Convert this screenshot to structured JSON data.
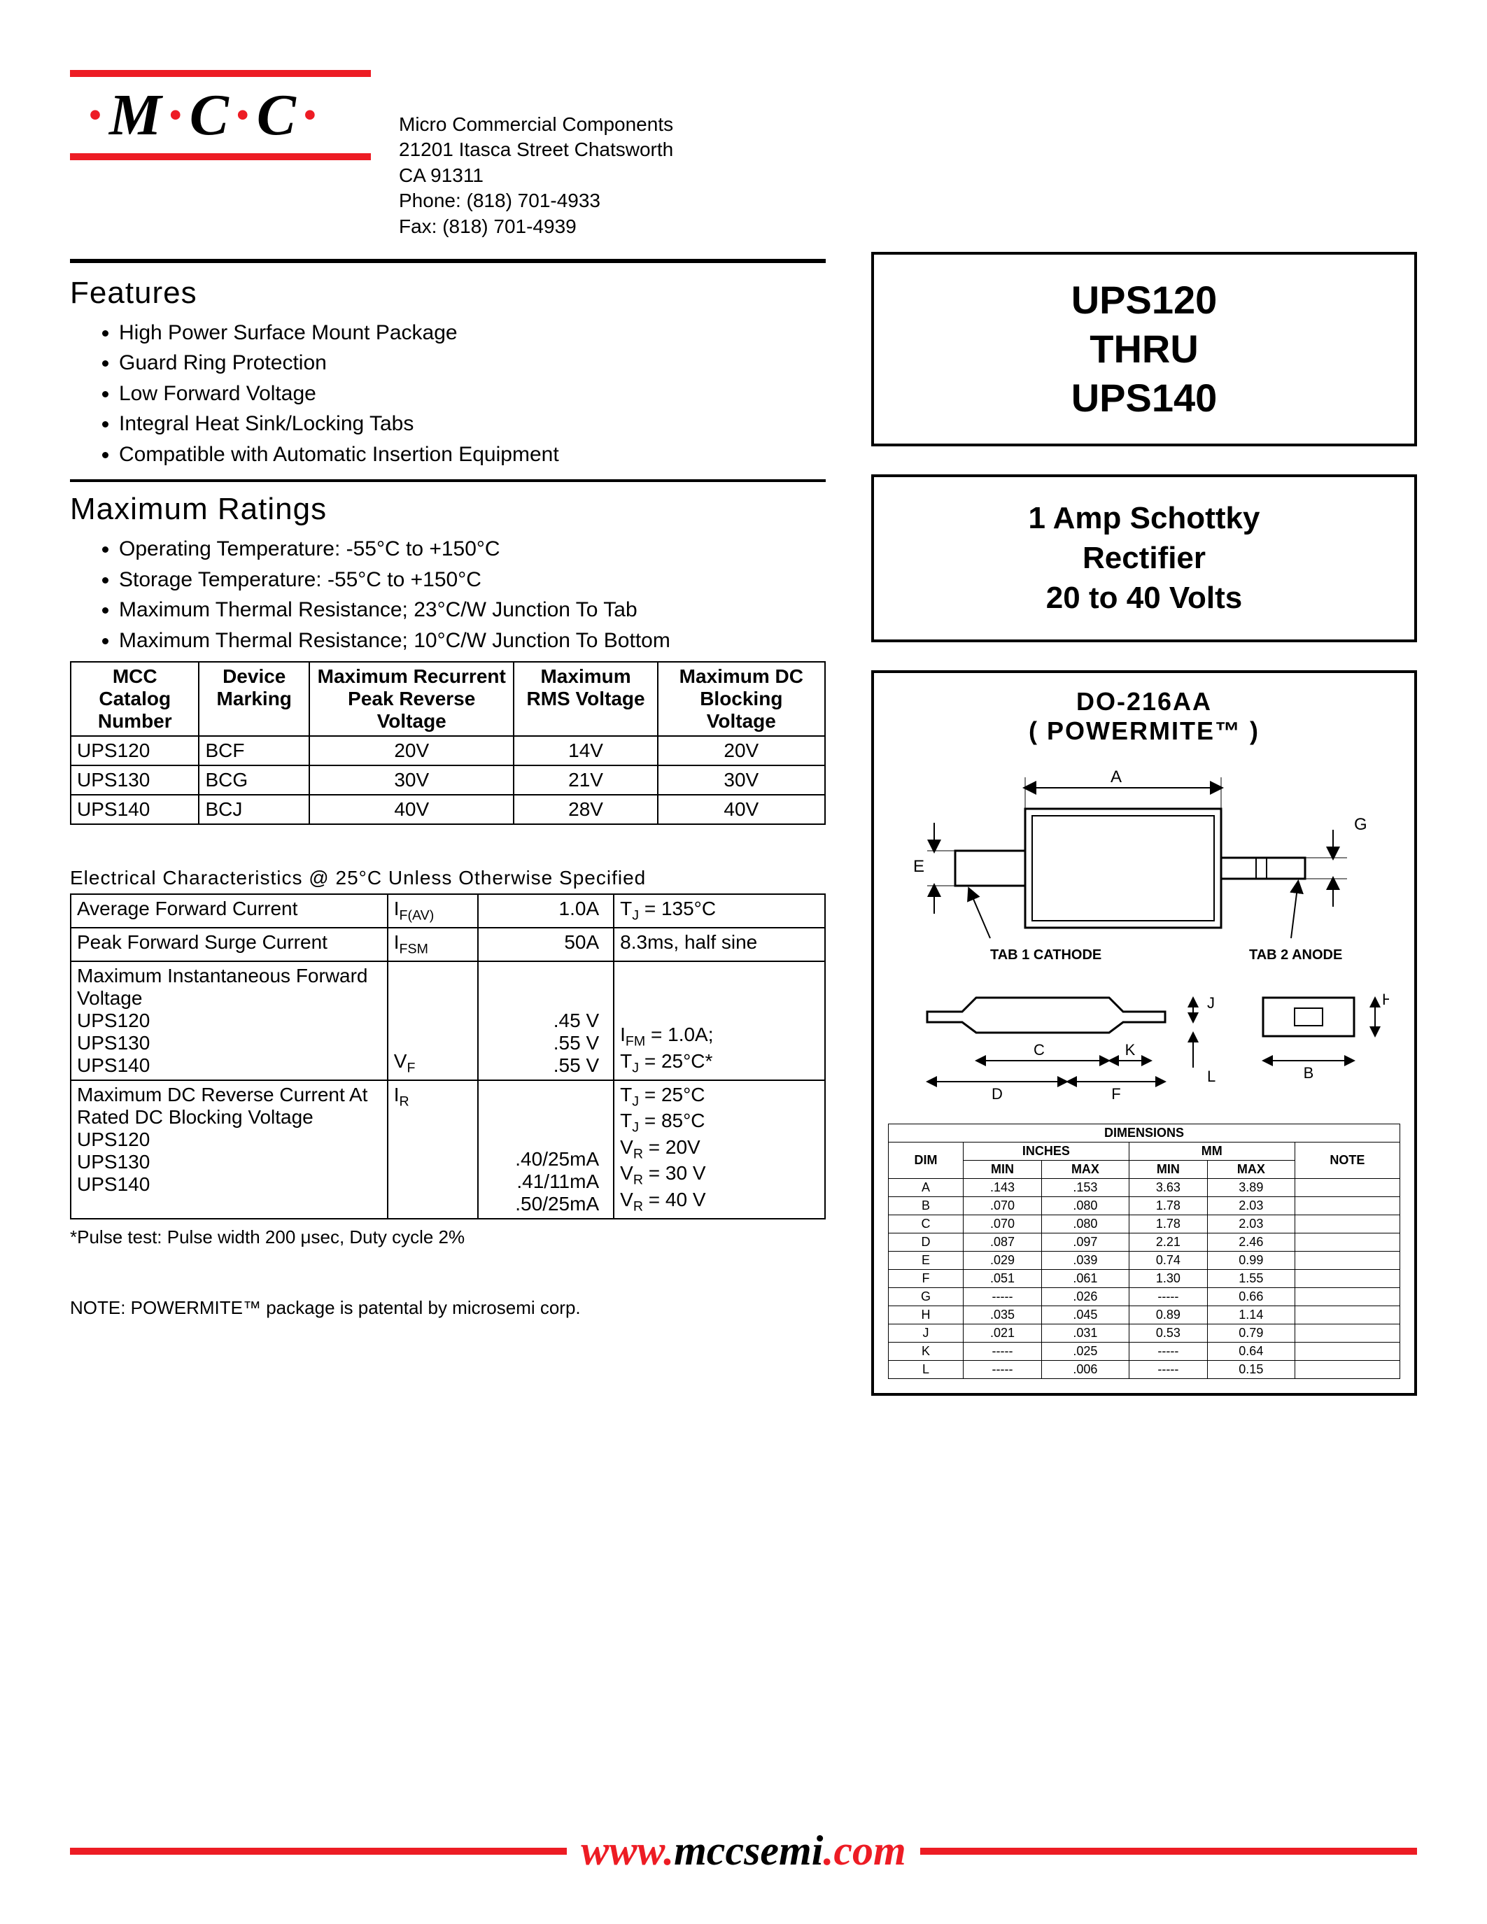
{
  "company": {
    "logo_text": "M·C·C",
    "name": "Micro Commercial Components",
    "address1": "21201 Itasca Street Chatsworth",
    "address2": "CA 91311",
    "phone": "Phone: (818) 701-4933",
    "fax": "Fax:     (818) 701-4939"
  },
  "title_box": {
    "line1": "UPS120",
    "line2": "THRU",
    "line3": "UPS140"
  },
  "subtitle_box": {
    "line1": "1 Amp Schottky",
    "line2": "Rectifier",
    "line3": "20 to 40 Volts"
  },
  "features": {
    "heading": "Features",
    "items": [
      "High Power Surface Mount Package",
      "Guard Ring Protection",
      "Low Forward Voltage",
      "Integral Heat Sink/Locking Tabs",
      "Compatible with Automatic Insertion Equipment"
    ]
  },
  "max_ratings": {
    "heading": "Maximum Ratings",
    "items": [
      "Operating Temperature: -55°C to +150°C",
      "Storage Temperature: -55°C to +150°C",
      "Maximum Thermal Resistance; 23°C/W Junction To Tab",
      "Maximum Thermal Resistance; 10°C/W Junction To Bottom"
    ]
  },
  "ratings_table": {
    "headers": [
      "MCC Catalog Number",
      "Device Marking",
      "Maximum Recurrent Peak Reverse Voltage",
      "Maximum RMS Voltage",
      "Maximum DC Blocking Voltage"
    ],
    "rows": [
      [
        "UPS120",
        "BCF",
        "20V",
        "14V",
        "20V"
      ],
      [
        "UPS130",
        "BCG",
        "30V",
        "21V",
        "30V"
      ],
      [
        "UPS140",
        "BCJ",
        "40V",
        "28V",
        "40V"
      ]
    ]
  },
  "elec_char": {
    "heading": "Electrical Characteristics @ 25°C Unless Otherwise Specified",
    "rows": [
      {
        "param": "Average Forward Current",
        "symbol": "I_F(AV)",
        "value": "1.0A",
        "cond": "T_J = 135°C"
      },
      {
        "param": "Peak Forward Surge Current",
        "symbol": "I_FSM",
        "value": "50A",
        "cond": "8.3ms, half sine"
      },
      {
        "param": "Maximum Instantaneous Forward Voltage\n        UPS120\n        UPS130\n        UPS140",
        "symbol": "V_F",
        "value": ".45 V\n.55 V\n.55 V",
        "cond": "I_FM = 1.0A;\nT_J = 25°C*"
      },
      {
        "param": "Maximum DC Reverse Current At Rated DC Blocking Voltage    UPS120\n        UPS130\n        UPS140",
        "symbol": "I_R",
        "value": "\n.40/25mA\n.41/11mA\n.50/25mA",
        "cond": "T_J = 25°C\nT_J = 85°C\nV_R = 20V\nV_R = 30 V\nV_R = 40 V"
      }
    ],
    "pulse_note": "*Pulse test: Pulse width 200 μsec, Duty cycle 2%",
    "note": "NOTE:  POWERMITE™ package is patental by microsemi corp."
  },
  "package": {
    "title_line1": "DO-216AA",
    "title_line2": "( POWERMITE™ )",
    "tab1": "TAB 1 CATHODE",
    "tab2": "TAB 2 ANODE",
    "dim_labels": [
      "A",
      "B",
      "C",
      "D",
      "E",
      "F",
      "G",
      "H",
      "J",
      "K",
      "L"
    ],
    "dims_header": {
      "top": "DIMENSIONS",
      "inches": "INCHES",
      "mm": "MM",
      "dim": "DIM",
      "min": "MIN",
      "max": "MAX",
      "note": "NOTE"
    },
    "dims": [
      {
        "d": "A",
        "imin": ".143",
        "imax": ".153",
        "mmin": "3.63",
        "mmax": "3.89",
        "n": ""
      },
      {
        "d": "B",
        "imin": ".070",
        "imax": ".080",
        "mmin": "1.78",
        "mmax": "2.03",
        "n": ""
      },
      {
        "d": "C",
        "imin": ".070",
        "imax": ".080",
        "mmin": "1.78",
        "mmax": "2.03",
        "n": ""
      },
      {
        "d": "D",
        "imin": ".087",
        "imax": ".097",
        "mmin": "2.21",
        "mmax": "2.46",
        "n": ""
      },
      {
        "d": "E",
        "imin": ".029",
        "imax": ".039",
        "mmin": "0.74",
        "mmax": "0.99",
        "n": ""
      },
      {
        "d": "F",
        "imin": ".051",
        "imax": ".061",
        "mmin": "1.30",
        "mmax": "1.55",
        "n": ""
      },
      {
        "d": "G",
        "imin": "-----",
        "imax": ".026",
        "mmin": "-----",
        "mmax": "0.66",
        "n": ""
      },
      {
        "d": "H",
        "imin": ".035",
        "imax": ".045",
        "mmin": "0.89",
        "mmax": "1.14",
        "n": ""
      },
      {
        "d": "J",
        "imin": ".021",
        "imax": ".031",
        "mmin": "0.53",
        "mmax": "0.79",
        "n": ""
      },
      {
        "d": "K",
        "imin": "-----",
        "imax": ".025",
        "mmin": "-----",
        "mmax": "0.64",
        "n": ""
      },
      {
        "d": "L",
        "imin": "-----",
        "imax": ".006",
        "mmin": "-----",
        "mmax": "0.15",
        "n": ""
      }
    ]
  },
  "footer": {
    "www": "www.",
    "domain": "mccsemi",
    "tld": ".com"
  },
  "colors": {
    "accent": "#ed1c24",
    "text": "#000000",
    "bg": "#ffffff"
  }
}
